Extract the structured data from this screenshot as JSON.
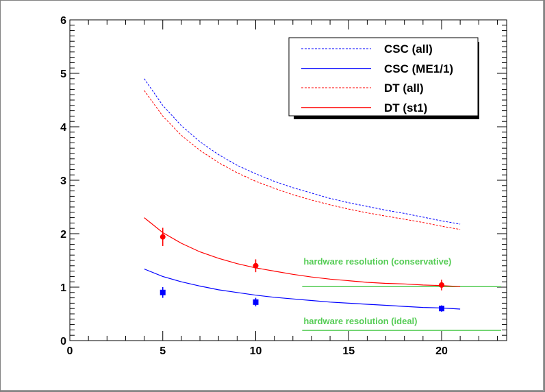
{
  "chart_data": {
    "type": "scatter",
    "title": "",
    "xlabel": "",
    "ylabel": "",
    "xlim": [
      0,
      23.5
    ],
    "ylim": [
      0,
      6
    ],
    "grid": false,
    "legend_position": "top-right",
    "x_ticks": [
      "0",
      "5",
      "10",
      "15",
      "20"
    ],
    "y_ticks": [
      "0",
      "1",
      "2",
      "3",
      "4",
      "5",
      "6"
    ],
    "series": [
      {
        "name": "CSC (all)",
        "kind": "curve",
        "style": "dotted",
        "color": "#0000ff",
        "x": [
          4,
          5,
          6,
          7,
          8,
          9,
          10,
          11,
          12,
          13,
          14,
          15,
          16,
          17,
          18,
          19,
          20,
          21
        ],
        "y": [
          4.9,
          4.4,
          4.02,
          3.72,
          3.48,
          3.28,
          3.12,
          2.98,
          2.86,
          2.76,
          2.66,
          2.58,
          2.51,
          2.44,
          2.38,
          2.31,
          2.24,
          2.18
        ]
      },
      {
        "name": "CSC (ME1/1)",
        "kind": "curve",
        "style": "solid",
        "color": "#0000ff",
        "x": [
          4,
          5,
          6,
          7,
          8,
          9,
          10,
          11,
          12,
          13,
          14,
          15,
          16,
          17,
          18,
          19,
          20,
          21
        ],
        "y": [
          1.34,
          1.2,
          1.1,
          1.02,
          0.95,
          0.9,
          0.85,
          0.81,
          0.78,
          0.75,
          0.72,
          0.7,
          0.68,
          0.66,
          0.64,
          0.62,
          0.61,
          0.59
        ]
      },
      {
        "name": "DT (all)",
        "kind": "curve",
        "style": "dotted",
        "color": "#ff0000",
        "x": [
          4,
          5,
          6,
          7,
          8,
          9,
          10,
          11,
          12,
          13,
          14,
          15,
          16,
          17,
          18,
          19,
          20,
          21
        ],
        "y": [
          4.68,
          4.2,
          3.84,
          3.56,
          3.33,
          3.14,
          2.98,
          2.85,
          2.73,
          2.63,
          2.54,
          2.46,
          2.39,
          2.33,
          2.27,
          2.21,
          2.14,
          2.08
        ]
      },
      {
        "name": "DT (st1)",
        "kind": "curve",
        "style": "solid",
        "color": "#ff0000",
        "x": [
          4,
          5,
          6,
          7,
          8,
          9,
          10,
          11,
          12,
          13,
          14,
          15,
          16,
          17,
          18,
          19,
          20,
          21
        ],
        "y": [
          2.3,
          2.02,
          1.82,
          1.66,
          1.54,
          1.44,
          1.36,
          1.3,
          1.24,
          1.19,
          1.15,
          1.12,
          1.09,
          1.07,
          1.06,
          1.04,
          1.03,
          1.01
        ]
      }
    ],
    "points": [
      {
        "marker": "circle",
        "color": "#ff0000",
        "x": [
          5,
          10,
          20
        ],
        "y": [
          1.94,
          1.4,
          1.04
        ],
        "err": [
          0.17,
          0.12,
          0.1
        ]
      },
      {
        "marker": "square",
        "color": "#0000ff",
        "x": [
          5,
          10,
          20
        ],
        "y": [
          0.9,
          0.72,
          0.6
        ],
        "err": [
          0.1,
          0.08,
          0.06
        ]
      }
    ],
    "reference_lines": [
      {
        "label": "hardware resolution (conservative)",
        "y": 1.01,
        "x": [
          12.5,
          23.5
        ],
        "color": "#55cc55"
      },
      {
        "label": "hardware resolution (ideal)",
        "y": 0.19,
        "x": [
          12.5,
          23.5
        ],
        "color": "#55cc55"
      }
    ]
  }
}
